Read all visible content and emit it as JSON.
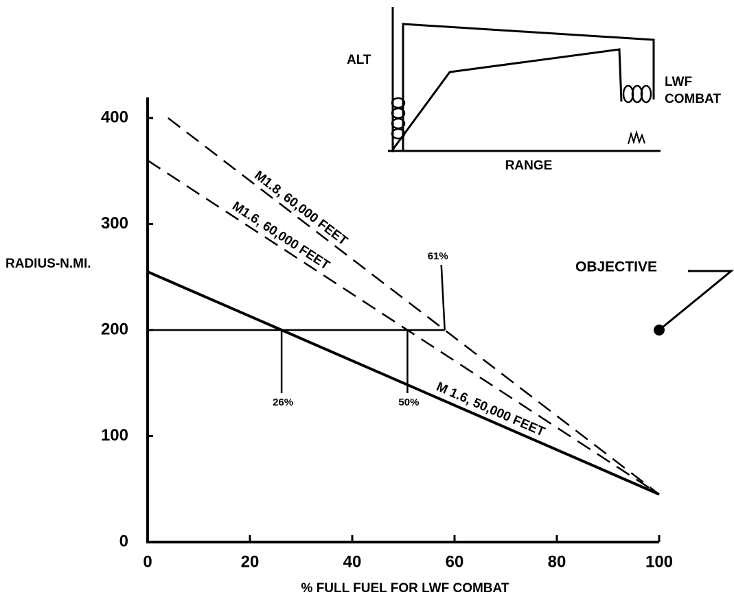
{
  "chart_data": {
    "type": "line",
    "x_label": "% FULL FUEL FOR LWF COMBAT",
    "y_label": "RADIUS-N.MI.",
    "xlim": [
      0,
      100
    ],
    "ylim": [
      0,
      400
    ],
    "xticks": [
      0,
      20,
      40,
      60,
      80,
      100
    ],
    "yticks": [
      0,
      100,
      200,
      300,
      400
    ],
    "series": [
      {
        "name": "M1.8, 60,000 FEET",
        "color": "#000000",
        "dashed": true,
        "x": [
          4,
          100
        ],
        "values": [
          400,
          45
        ]
      },
      {
        "name": "M1.6, 60,000 FEET",
        "color": "#000000",
        "dashed": true,
        "x": [
          0,
          100
        ],
        "values": [
          360,
          45
        ]
      },
      {
        "name": "M 1.6, 50,000 FEET",
        "color": "#000000",
        "dashed": false,
        "x": [
          0,
          100
        ],
        "values": [
          255,
          45
        ]
      }
    ],
    "objective": {
      "label": "OBJECTIVE",
      "x": 100,
      "value": 200
    },
    "annotations": [
      "61%",
      "50%",
      "26%"
    ],
    "inset": {
      "y_label": "ALT",
      "x_label": "RANGE",
      "combat_labels": [
        "LWF",
        "COMBAT"
      ]
    }
  }
}
